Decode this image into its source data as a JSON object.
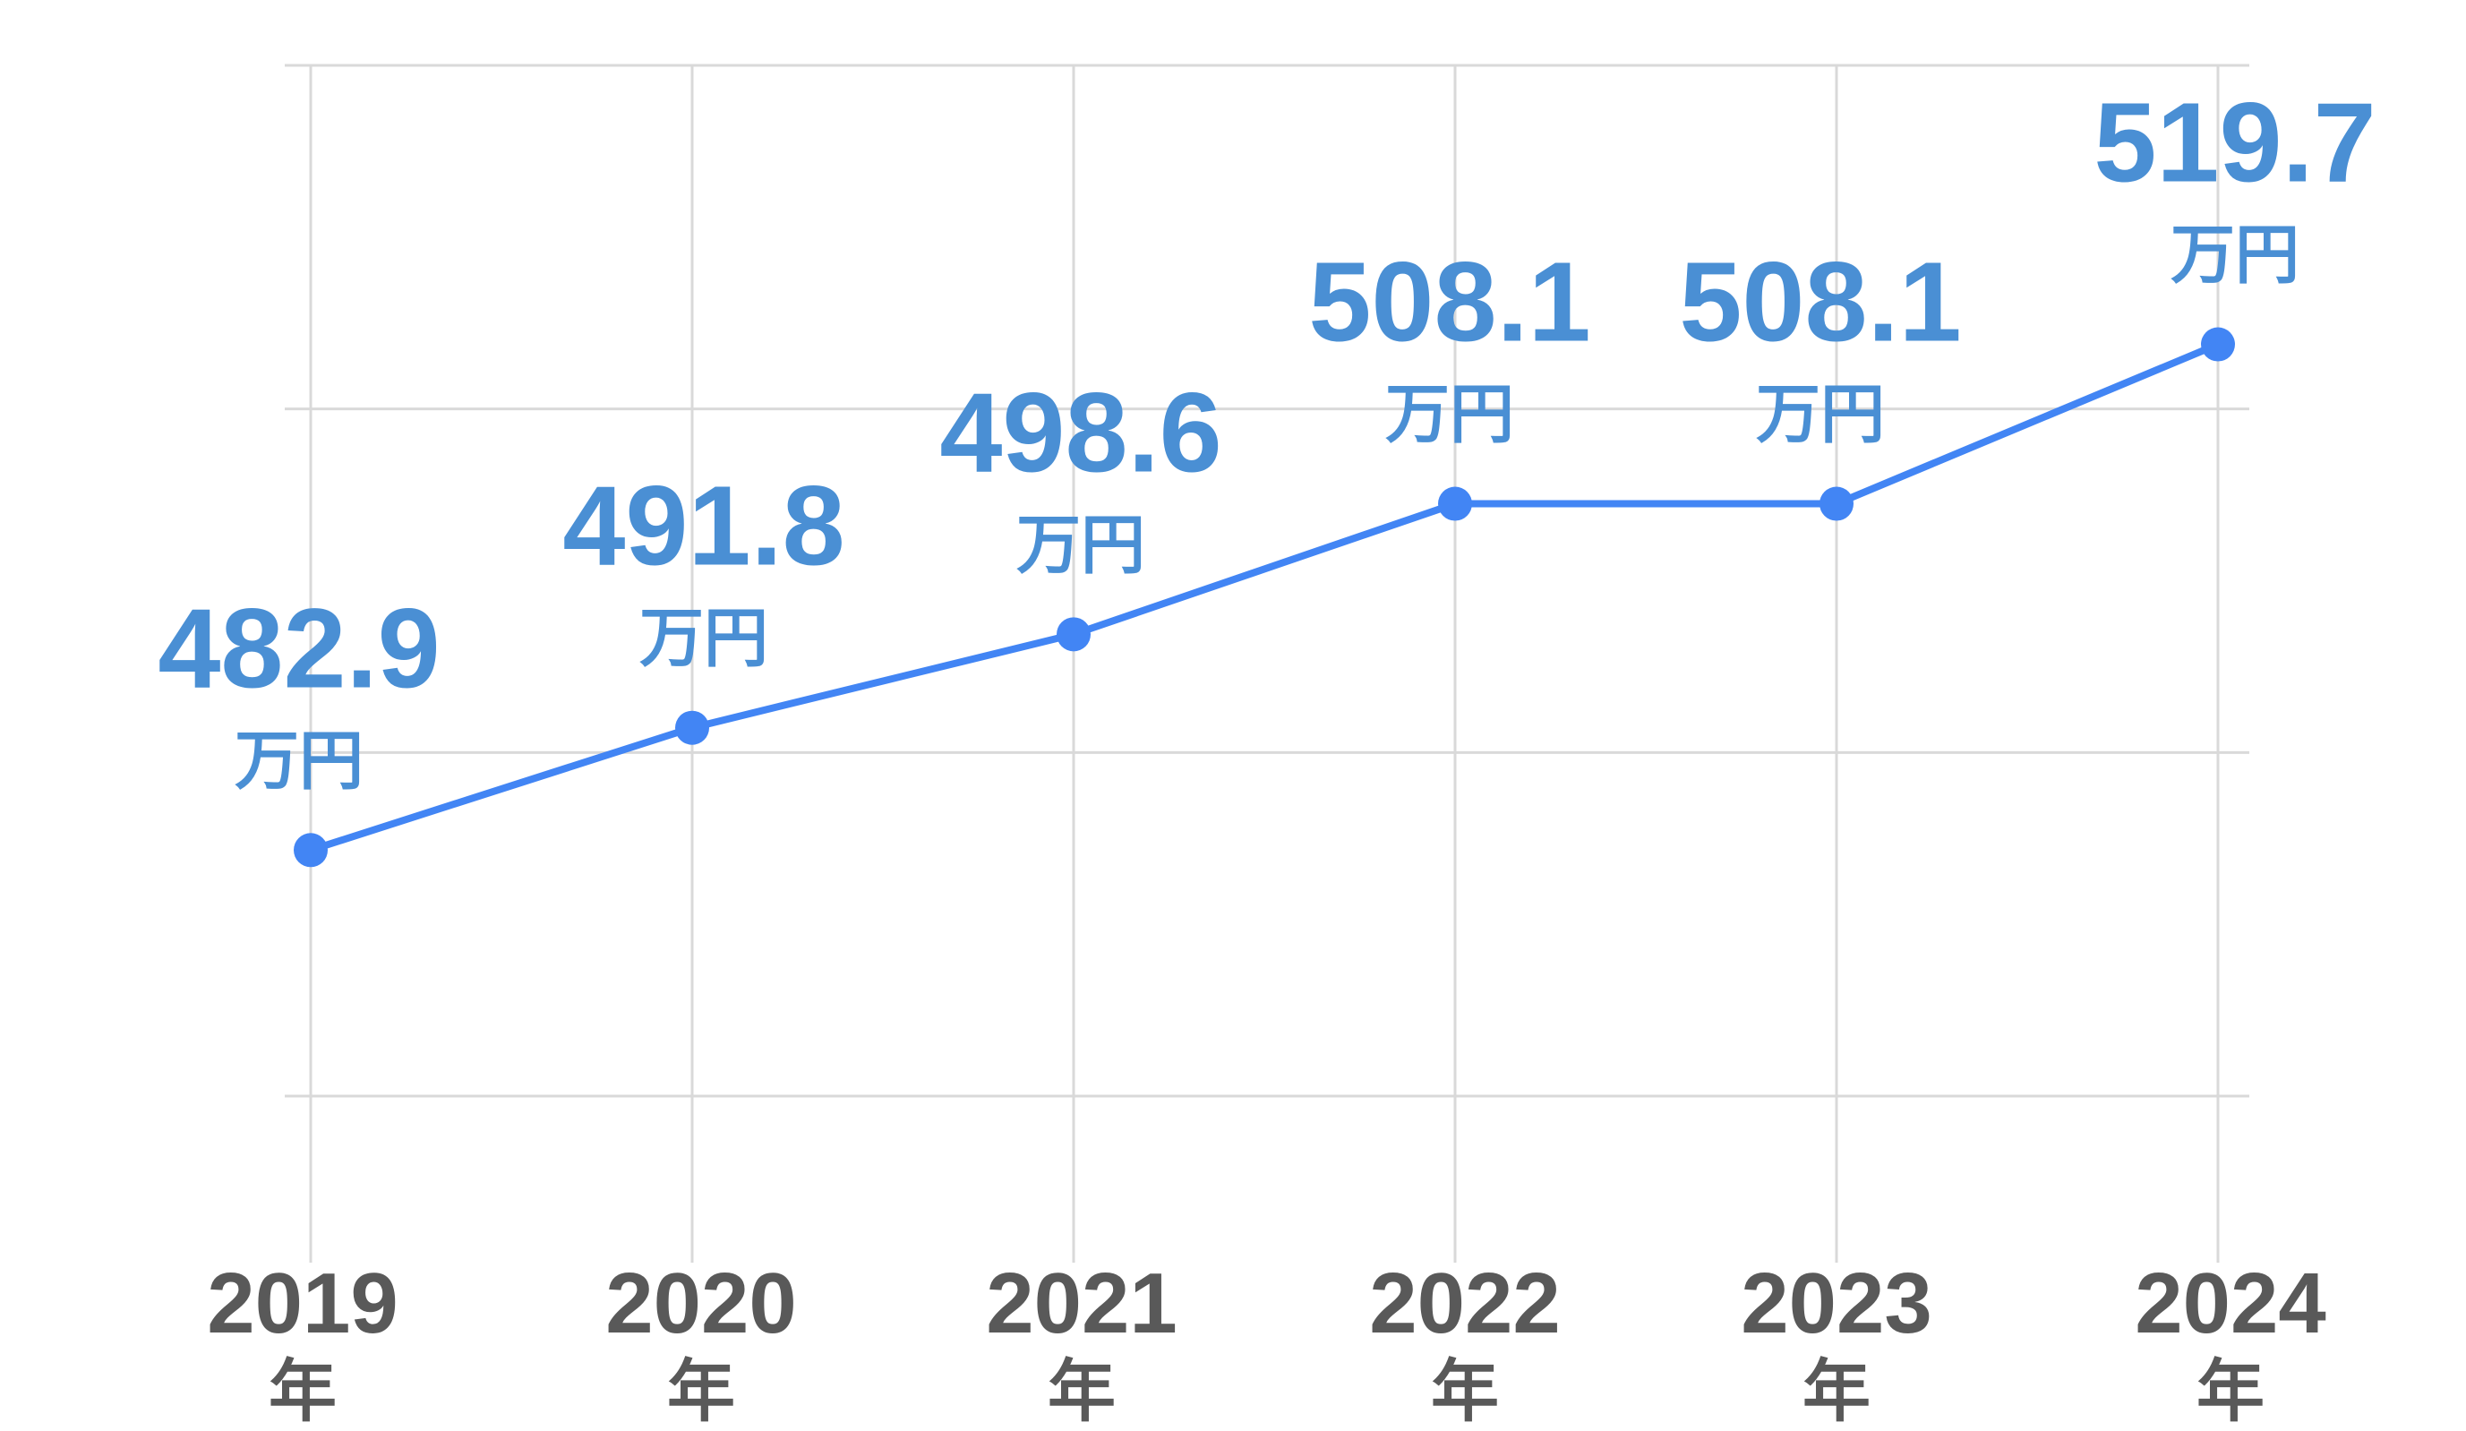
{
  "chart_data": {
    "type": "line",
    "categories": [
      "2019",
      "2020",
      "2021",
      "2022",
      "2023",
      "2024"
    ],
    "x_unit": "年",
    "series": [
      {
        "values": [
          482.9,
          491.8,
          498.6,
          508.1,
          508.1,
          519.7
        ],
        "data_labels": [
          "482.9",
          "491.8",
          "498.6",
          "508.1",
          "508.1",
          "519.7"
        ],
        "unit": "万円"
      }
    ],
    "title": "",
    "xlabel": "",
    "ylabel": "",
    "ylim": [
      465,
      540
    ],
    "yticks": [
      465,
      490,
      515,
      540
    ],
    "grid": true,
    "legend": "none",
    "colors": {
      "line": "#4285f4",
      "label": "#4a8fd4",
      "axis_text": "#595959",
      "grid": "#d9d9d9"
    }
  }
}
